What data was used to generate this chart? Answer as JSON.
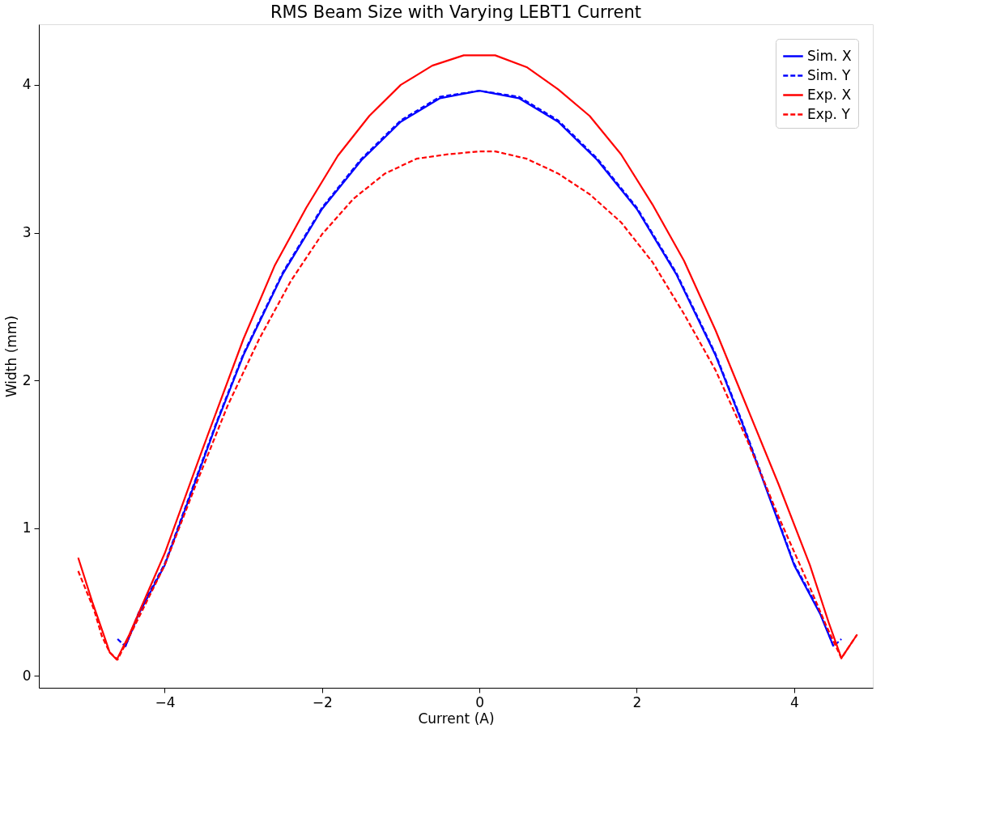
{
  "chart_data": {
    "type": "line",
    "title": "RMS Beam Size with Varying LEBT1 Current",
    "xlabel": "Current (A)",
    "ylabel": "Width (mm)",
    "xlim": [
      -5.6,
      5.0
    ],
    "xticks": [
      {
        "value": -4,
        "label": "−4"
      },
      {
        "value": -2,
        "label": "−2"
      },
      0,
      2,
      4
    ],
    "ylim": [
      -0.08,
      4.41
    ],
    "yticks": [
      0,
      1,
      2,
      3,
      4
    ],
    "grid": false,
    "legend": "top right",
    "series": [
      {
        "name": "Sim. X",
        "color": "#0000ff",
        "line_style": "solid",
        "x": [
          -4.5,
          -4.33,
          -4.0,
          -3.67,
          -3.34,
          -3.0,
          -2.5,
          -2.0,
          -1.5,
          -1.0,
          -0.5,
          0.0,
          0.5,
          1.0,
          1.5,
          2.0,
          2.5,
          3.0,
          3.34,
          3.67,
          4.0,
          4.33,
          4.5
        ],
        "values": [
          0.2,
          0.42,
          0.75,
          1.23,
          1.71,
          2.17,
          2.72,
          3.16,
          3.49,
          3.75,
          3.91,
          3.96,
          3.91,
          3.75,
          3.49,
          3.16,
          2.72,
          2.17,
          1.71,
          1.23,
          0.75,
          0.42,
          0.2
        ]
      },
      {
        "name": "Sim. Y",
        "color": "#0000ff",
        "line_style": "dashed",
        "x": [
          -4.6,
          -4.5,
          -4.33,
          -4.0,
          -3.67,
          -3.34,
          -3.0,
          -2.5,
          -2.0,
          -1.5,
          -1.0,
          -0.5,
          0.0,
          0.5,
          1.0,
          1.5,
          2.0,
          2.5,
          3.0,
          3.34,
          3.67,
          4.0,
          4.33,
          4.5,
          4.6
        ],
        "values": [
          0.25,
          0.2,
          0.43,
          0.76,
          1.24,
          1.72,
          2.18,
          2.73,
          3.17,
          3.5,
          3.76,
          3.92,
          3.96,
          3.92,
          3.76,
          3.5,
          3.17,
          2.73,
          2.18,
          1.72,
          1.24,
          0.76,
          0.43,
          0.2,
          0.25
        ]
      },
      {
        "name": "Exp. X",
        "color": "#ff0000",
        "line_style": "solid",
        "x": [
          -5.1,
          -4.92,
          -4.77,
          -4.7,
          -4.61,
          -4.45,
          -4.0,
          -3.53,
          -3.0,
          -2.6,
          -2.2,
          -1.8,
          -1.4,
          -1.0,
          -0.6,
          -0.2,
          0.2,
          0.6,
          1.0,
          1.4,
          1.8,
          2.2,
          2.6,
          3.0,
          3.4,
          3.8,
          4.2,
          4.44,
          4.6,
          4.8
        ],
        "values": [
          0.8,
          0.5,
          0.27,
          0.16,
          0.11,
          0.28,
          0.83,
          1.52,
          2.28,
          2.78,
          3.17,
          3.52,
          3.79,
          4.0,
          4.13,
          4.2,
          4.2,
          4.12,
          3.97,
          3.79,
          3.53,
          3.19,
          2.81,
          2.34,
          1.82,
          1.3,
          0.75,
          0.36,
          0.12,
          0.28
        ]
      },
      {
        "name": "Exp. Y",
        "color": "#ff0000",
        "line_style": "dashed",
        "x": [
          -5.1,
          -4.9,
          -4.8,
          -4.7,
          -4.6,
          -4.4,
          -4.0,
          -3.6,
          -3.2,
          -2.8,
          -2.4,
          -2.0,
          -1.6,
          -1.2,
          -0.8,
          -0.4,
          0.0,
          0.2,
          0.6,
          1.0,
          1.4,
          1.8,
          2.2,
          2.6,
          3.0,
          3.4,
          3.8,
          4.2,
          4.4,
          4.6,
          4.8
        ],
        "values": [
          0.71,
          0.45,
          0.27,
          0.16,
          0.11,
          0.32,
          0.75,
          1.3,
          1.83,
          2.28,
          2.67,
          2.99,
          3.23,
          3.4,
          3.5,
          3.53,
          3.55,
          3.55,
          3.5,
          3.4,
          3.26,
          3.07,
          2.8,
          2.45,
          2.07,
          1.6,
          1.08,
          0.6,
          0.35,
          0.12,
          0.28
        ]
      }
    ]
  }
}
